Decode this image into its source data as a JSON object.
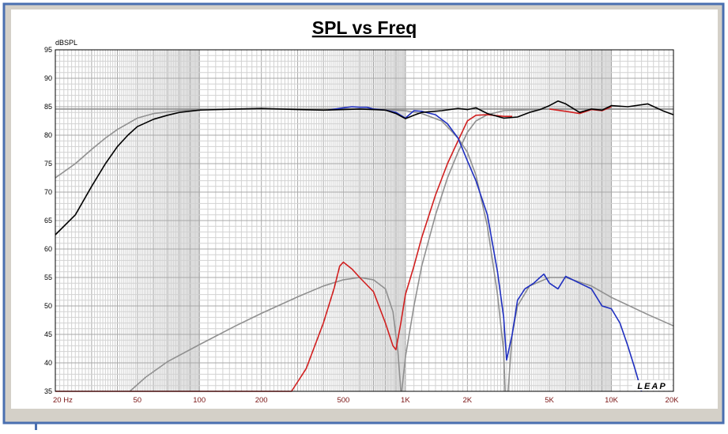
{
  "chart_data": {
    "type": "line",
    "title": "SPL vs Freq",
    "ylabel": "dBSPL",
    "xlabel": "",
    "x_scale": "log",
    "xlim": [
      20,
      20000
    ],
    "ylim": [
      35,
      95
    ],
    "grid": true,
    "x_ticks": [
      {
        "value": 20,
        "label": "20  Hz"
      },
      {
        "value": 50,
        "label": "50"
      },
      {
        "value": 100,
        "label": "100"
      },
      {
        "value": 200,
        "label": "200"
      },
      {
        "value": 500,
        "label": "500"
      },
      {
        "value": 1000,
        "label": "1K"
      },
      {
        "value": 2000,
        "label": "2K"
      },
      {
        "value": 5000,
        "label": "5K"
      },
      {
        "value": 10000,
        "label": "10K"
      },
      {
        "value": 20000,
        "label": "20K"
      }
    ],
    "y_ticks": [
      95,
      90,
      85,
      80,
      75,
      70,
      65,
      60,
      55,
      50,
      45,
      40,
      35
    ],
    "watermark": "LEAP",
    "series": [
      {
        "color": "#909090",
        "points": [
          [
            20,
            72.5
          ],
          [
            25,
            75
          ],
          [
            30,
            77.5
          ],
          [
            35,
            79.5
          ],
          [
            40,
            81
          ],
          [
            50,
            83
          ],
          [
            60,
            83.8
          ],
          [
            80,
            84.3
          ],
          [
            100,
            84.5
          ],
          [
            200,
            84.6
          ],
          [
            500,
            84.6
          ],
          [
            1000,
            84.6
          ],
          [
            2000,
            84.6
          ],
          [
            5000,
            84.6
          ],
          [
            10000,
            84.6
          ],
          [
            20000,
            84.6
          ]
        ]
      },
      {
        "color": "#909090",
        "points": [
          [
            46,
            35
          ],
          [
            55,
            37.5
          ],
          [
            70,
            40.2
          ],
          [
            100,
            43.2
          ],
          [
            150,
            46.5
          ],
          [
            200,
            48.7
          ],
          [
            300,
            51.6
          ],
          [
            400,
            53.5
          ],
          [
            500,
            54.6
          ],
          [
            600,
            55
          ],
          [
            700,
            54.6
          ],
          [
            800,
            53
          ],
          [
            870,
            49
          ],
          [
            920,
            42
          ],
          [
            950,
            35
          ]
        ]
      },
      {
        "color": "#909090",
        "points": [
          [
            960,
            35
          ],
          [
            1000,
            41
          ],
          [
            1100,
            50
          ],
          [
            1200,
            57
          ],
          [
            1400,
            66
          ],
          [
            1600,
            72.5
          ],
          [
            1800,
            77
          ],
          [
            2000,
            80.5
          ],
          [
            2200,
            82.5
          ],
          [
            2500,
            83.6
          ],
          [
            3000,
            84.3
          ],
          [
            5000,
            84.6
          ],
          [
            20000,
            84.6
          ]
        ]
      },
      {
        "color": "#909090",
        "points": [
          [
            20,
            84.6
          ],
          [
            500,
            84.6
          ],
          [
            800,
            84.5
          ],
          [
            1000,
            84.3
          ],
          [
            1200,
            83.8
          ],
          [
            1500,
            82.5
          ],
          [
            1800,
            79.5
          ],
          [
            2000,
            77
          ],
          [
            2200,
            73
          ],
          [
            2500,
            64
          ],
          [
            2800,
            52
          ],
          [
            3000,
            42
          ],
          [
            3050,
            35
          ]
        ]
      },
      {
        "color": "#909090",
        "points": [
          [
            3150,
            35
          ],
          [
            3300,
            45
          ],
          [
            3500,
            50
          ],
          [
            4000,
            53.5
          ],
          [
            5000,
            55
          ],
          [
            6000,
            55
          ],
          [
            8000,
            53.5
          ],
          [
            10000,
            51.5
          ],
          [
            15000,
            48.5
          ],
          [
            20000,
            46.5
          ]
        ]
      },
      {
        "color": "#d11f1f",
        "points": [
          [
            20,
            35
          ],
          [
            280,
            35
          ],
          [
            330,
            39
          ],
          [
            400,
            47
          ],
          [
            450,
            53
          ],
          [
            480,
            57
          ],
          [
            500,
            57.7
          ],
          [
            550,
            56.5
          ],
          [
            600,
            55
          ],
          [
            700,
            52.5
          ],
          [
            800,
            47
          ],
          [
            870,
            43
          ],
          [
            900,
            42.3
          ],
          [
            950,
            47
          ],
          [
            1000,
            52
          ],
          [
            1100,
            57
          ],
          [
            1200,
            62
          ],
          [
            1400,
            69.5
          ],
          [
            1600,
            75
          ],
          [
            1800,
            79
          ],
          [
            2000,
            82.5
          ],
          [
            2200,
            83.5
          ],
          [
            2500,
            83.6
          ],
          [
            3000,
            83.3
          ],
          [
            3300,
            83.3
          ]
        ]
      },
      {
        "color": "#d11f1f",
        "points": [
          [
            5000,
            84.6
          ],
          [
            6000,
            84.2
          ],
          [
            7000,
            83.8
          ],
          [
            8000,
            84.5
          ],
          [
            9000,
            84.3
          ],
          [
            10000,
            85
          ]
        ]
      },
      {
        "color": "#1f2fc0",
        "points": [
          [
            420,
            84.4
          ],
          [
            500,
            84.8
          ],
          [
            550,
            85
          ],
          [
            600,
            84.9
          ],
          [
            650,
            84.9
          ],
          [
            700,
            84.6
          ],
          [
            800,
            84.4
          ],
          [
            900,
            84
          ],
          [
            1000,
            83
          ],
          [
            1100,
            84.3
          ],
          [
            1200,
            84.2
          ],
          [
            1400,
            83.6
          ],
          [
            1600,
            82
          ],
          [
            1800,
            79.5
          ],
          [
            2000,
            75.5
          ],
          [
            2200,
            72
          ],
          [
            2500,
            66
          ],
          [
            2800,
            56
          ],
          [
            3000,
            48
          ],
          [
            3100,
            40.5
          ],
          [
            3300,
            45
          ],
          [
            3500,
            51
          ],
          [
            3800,
            53
          ],
          [
            4200,
            54
          ],
          [
            4500,
            55
          ],
          [
            4700,
            55.6
          ],
          [
            5000,
            54
          ],
          [
            5500,
            53
          ],
          [
            6000,
            55.2
          ],
          [
            7000,
            54
          ],
          [
            8000,
            53
          ],
          [
            9000,
            50
          ],
          [
            10000,
            49.5
          ],
          [
            11000,
            47
          ],
          [
            12000,
            43
          ],
          [
            13000,
            39
          ],
          [
            14000,
            35
          ]
        ]
      },
      {
        "color": "#000000",
        "points": [
          [
            20,
            62.5
          ],
          [
            25,
            66
          ],
          [
            30,
            71
          ],
          [
            35,
            75
          ],
          [
            40,
            78
          ],
          [
            45,
            80
          ],
          [
            50,
            81.5
          ],
          [
            60,
            82.8
          ],
          [
            70,
            83.5
          ],
          [
            80,
            84
          ],
          [
            100,
            84.4
          ],
          [
            150,
            84.6
          ],
          [
            200,
            84.7
          ],
          [
            300,
            84.5
          ],
          [
            400,
            84.4
          ],
          [
            500,
            84.5
          ],
          [
            600,
            84.6
          ],
          [
            700,
            84.5
          ],
          [
            800,
            84.4
          ],
          [
            900,
            83.8
          ],
          [
            1000,
            82.9
          ],
          [
            1100,
            83.5
          ],
          [
            1200,
            84
          ],
          [
            1500,
            84.3
          ],
          [
            1800,
            84.7
          ],
          [
            2000,
            84.5
          ],
          [
            2200,
            84.8
          ],
          [
            2500,
            83.8
          ],
          [
            3000,
            83
          ],
          [
            3500,
            83.2
          ],
          [
            4000,
            84
          ],
          [
            4500,
            84.5
          ],
          [
            5000,
            85.2
          ],
          [
            5500,
            86
          ],
          [
            6000,
            85.5
          ],
          [
            7000,
            84
          ],
          [
            8000,
            84.6
          ],
          [
            9000,
            84.4
          ],
          [
            10000,
            85.2
          ],
          [
            12000,
            85
          ],
          [
            15000,
            85.5
          ],
          [
            18000,
            84.2
          ],
          [
            20000,
            83.6
          ]
        ]
      }
    ]
  }
}
